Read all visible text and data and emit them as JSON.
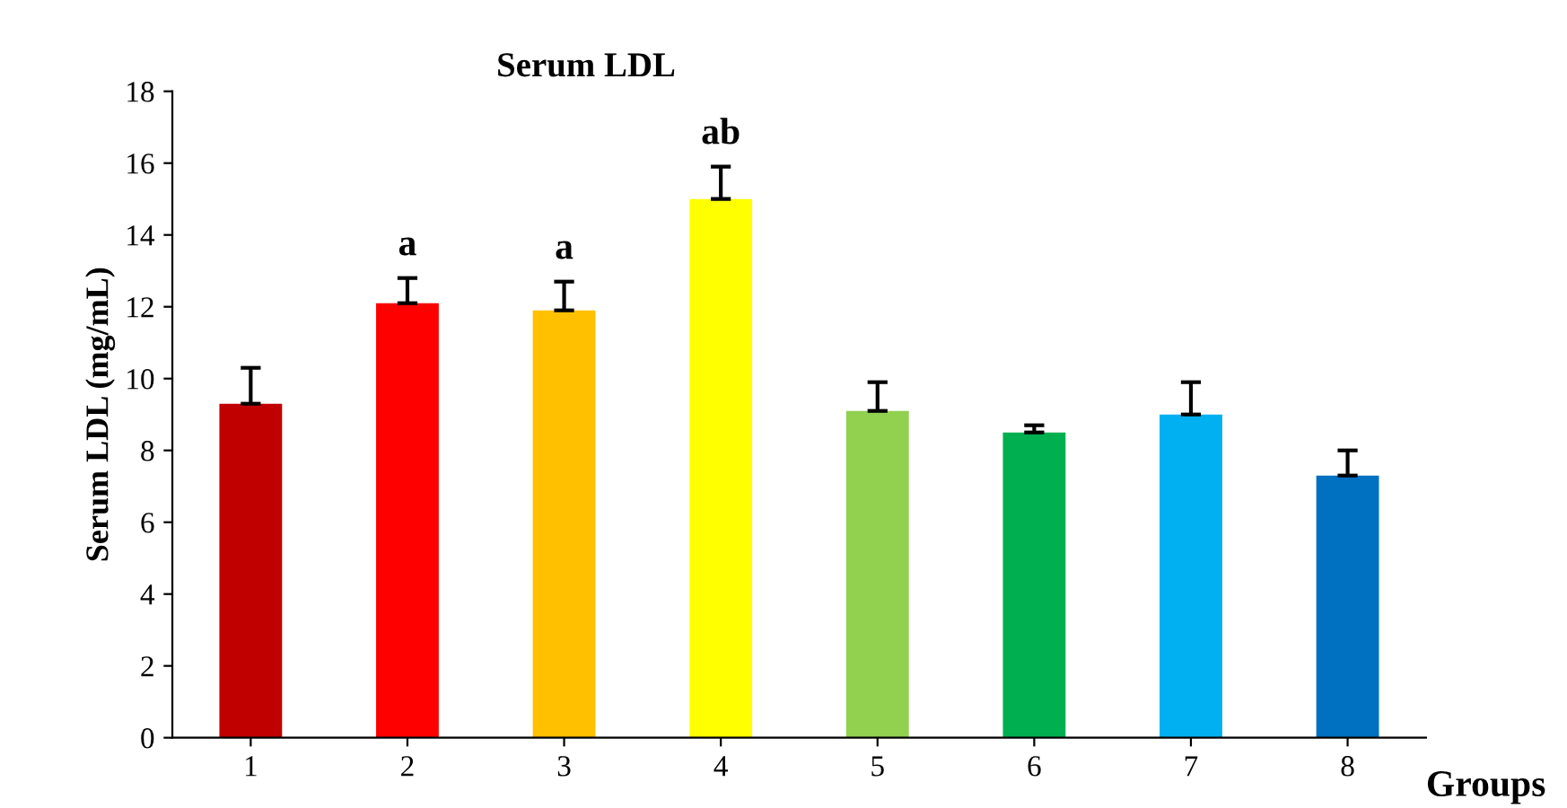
{
  "chart_data": {
    "type": "bar",
    "title": "Serum LDL",
    "xlabel": "Groups",
    "ylabel": "Serum LDL (mg/mL)",
    "categories": [
      "1",
      "2",
      "3",
      "4",
      "5",
      "6",
      "7",
      "8"
    ],
    "values": [
      9.3,
      12.1,
      11.9,
      15.0,
      9.1,
      8.5,
      9.0,
      7.3
    ],
    "errors": [
      [
        9.3,
        10.3
      ],
      [
        12.1,
        12.8
      ],
      [
        11.9,
        12.7
      ],
      [
        15.0,
        15.9
      ],
      [
        9.1,
        9.9
      ],
      [
        8.5,
        8.7
      ],
      [
        9.0,
        9.9
      ],
      [
        7.3,
        8.0
      ]
    ],
    "colors": [
      "#c00000",
      "#ff0000",
      "#ffc000",
      "#ffff00",
      "#92d050",
      "#00b050",
      "#00b0f0",
      "#0070c0"
    ],
    "ylim": [
      0,
      18
    ],
    "yticks": [
      0,
      2,
      4,
      6,
      8,
      10,
      12,
      14,
      16,
      18
    ],
    "grid": false,
    "legend": false,
    "annotations": [
      {
        "text": "a",
        "x": "2",
        "y": 12.8
      },
      {
        "text": "a",
        "x": "3",
        "y": 12.7
      },
      {
        "text": "ab",
        "x": "4",
        "y": 15.9
      }
    ]
  }
}
